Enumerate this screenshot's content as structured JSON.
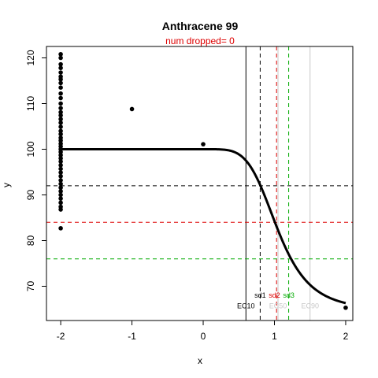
{
  "chart_data": {
    "type": "scatter",
    "title": "Anthracene 99",
    "subtitle": "num dropped= 0",
    "xlabel": "x",
    "ylabel": "y",
    "xlim": [
      -2.2,
      2.1
    ],
    "ylim": [
      62.5,
      122.5
    ],
    "xticks": [
      -2,
      -1,
      0,
      1,
      2
    ],
    "yticks": [
      70,
      80,
      90,
      100,
      110,
      120
    ],
    "points": [
      {
        "x": -2,
        "y": 120.8
      },
      {
        "x": -2,
        "y": 120.0
      },
      {
        "x": -2,
        "y": 118.6
      },
      {
        "x": -2,
        "y": 117.8
      },
      {
        "x": -2,
        "y": 116.8
      },
      {
        "x": -2,
        "y": 115.9
      },
      {
        "x": -2,
        "y": 115.3
      },
      {
        "x": -2,
        "y": 114.5
      },
      {
        "x": -2,
        "y": 113.5
      },
      {
        "x": -2,
        "y": 112.2
      },
      {
        "x": -2,
        "y": 111.2
      },
      {
        "x": -2,
        "y": 110.0
      },
      {
        "x": -2,
        "y": 109.0
      },
      {
        "x": -2,
        "y": 108.1
      },
      {
        "x": -2,
        "y": 107.4
      },
      {
        "x": -2,
        "y": 106.6
      },
      {
        "x": -2,
        "y": 105.8
      },
      {
        "x": -2,
        "y": 104.9
      },
      {
        "x": -2,
        "y": 104.0
      },
      {
        "x": -2,
        "y": 103.3
      },
      {
        "x": -2,
        "y": 102.5
      },
      {
        "x": -2,
        "y": 101.9
      },
      {
        "x": -2,
        "y": 101.2
      },
      {
        "x": -2,
        "y": 100.6
      },
      {
        "x": -2,
        "y": 100.0
      },
      {
        "x": -2,
        "y": 99.4
      },
      {
        "x": -2,
        "y": 98.7
      },
      {
        "x": -2,
        "y": 98.0
      },
      {
        "x": -2,
        "y": 97.3
      },
      {
        "x": -2,
        "y": 96.5
      },
      {
        "x": -2,
        "y": 95.7
      },
      {
        "x": -2,
        "y": 94.9
      },
      {
        "x": -2,
        "y": 94.1
      },
      {
        "x": -2,
        "y": 93.2
      },
      {
        "x": -2,
        "y": 92.4
      },
      {
        "x": -2,
        "y": 91.6
      },
      {
        "x": -2,
        "y": 90.8
      },
      {
        "x": -2,
        "y": 90.0
      },
      {
        "x": -2,
        "y": 89.2
      },
      {
        "x": -2,
        "y": 88.3
      },
      {
        "x": -2,
        "y": 87.4
      },
      {
        "x": -2,
        "y": 86.8
      },
      {
        "x": -2,
        "y": 82.7
      },
      {
        "x": -1,
        "y": 108.8
      },
      {
        "x": 0,
        "y": 101.1
      },
      {
        "x": 2,
        "y": 65.3
      }
    ],
    "fit_curve": {
      "top": 100,
      "bottom": 64.6,
      "ec50": 1.05,
      "slope": 2.1,
      "x_start": -2,
      "x_end": 2
    },
    "hlines": [
      {
        "y": 92,
        "color": "#000000",
        "style": "dashed"
      },
      {
        "y": 84,
        "color": "#dd0000",
        "style": "dashed"
      },
      {
        "y": 76,
        "color": "#00aa00",
        "style": "dashed"
      }
    ],
    "vlines": [
      {
        "x": 0.6,
        "color": "#000000",
        "style": "solid"
      },
      {
        "x": 0.8,
        "color": "#000000",
        "style": "dashed"
      },
      {
        "x": 1.03,
        "color": "#dd0000",
        "style": "dashed"
      },
      {
        "x": 1.2,
        "color": "#00aa00",
        "style": "dashed"
      },
      {
        "x": 1.05,
        "color": "#c8c8c8",
        "style": "solid"
      },
      {
        "x": 1.5,
        "color": "#c8c8c8",
        "style": "solid"
      }
    ],
    "annotations": [
      {
        "text": "sd1",
        "x": 0.8,
        "y": 67.5,
        "color": "#000000"
      },
      {
        "text": "sd2",
        "x": 1.0,
        "y": 67.5,
        "color": "#dd0000"
      },
      {
        "text": "sd3",
        "x": 1.2,
        "y": 67.5,
        "color": "#00aa00"
      },
      {
        "text": "EC10",
        "x": 0.6,
        "y": 65.2,
        "color": "#000000"
      },
      {
        "text": "EC50",
        "x": 1.05,
        "y": 65.2,
        "color": "#c8c8c8"
      },
      {
        "text": "EC90",
        "x": 1.5,
        "y": 65.2,
        "color": "#c8c8c8"
      }
    ]
  }
}
